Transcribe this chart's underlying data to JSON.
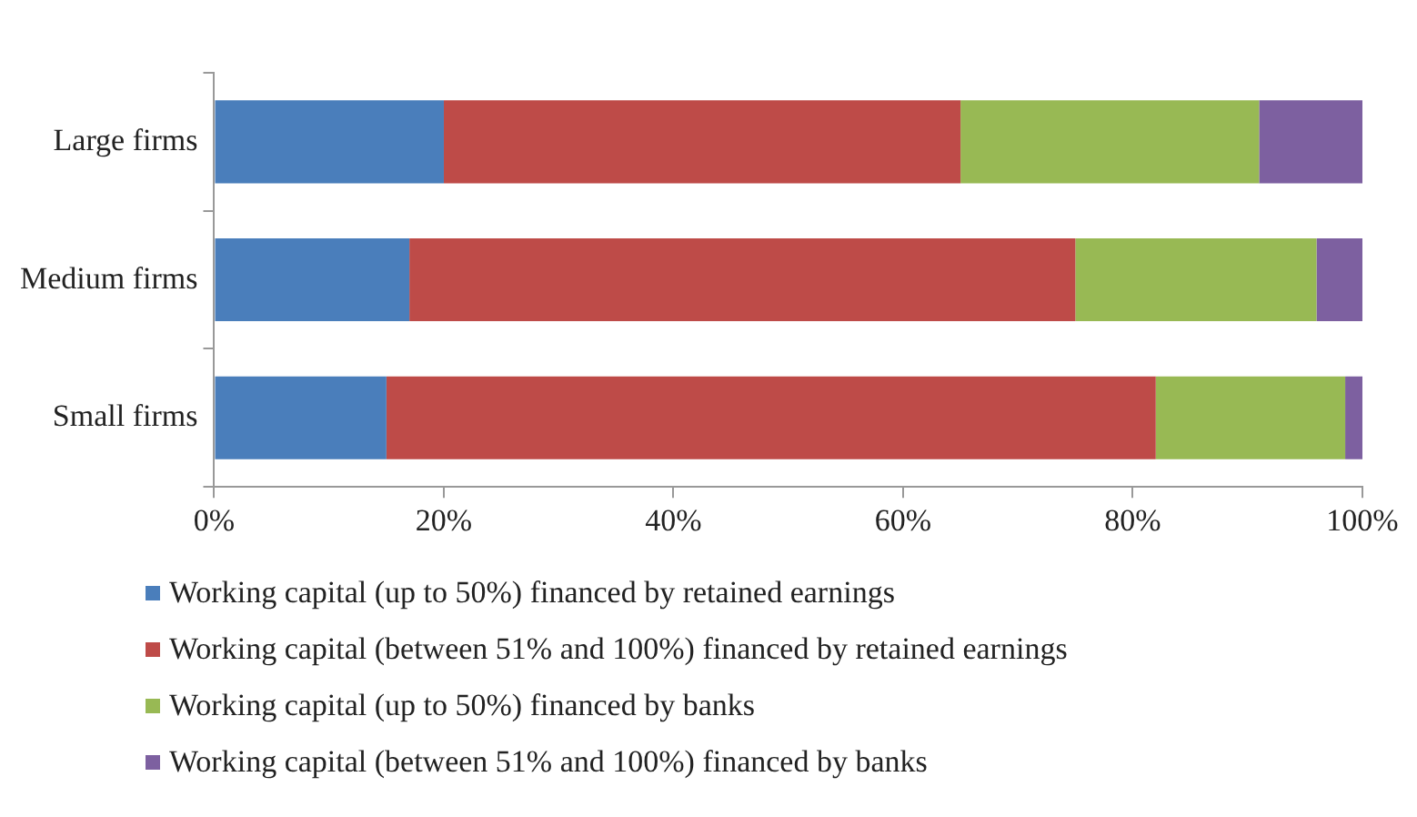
{
  "chart_data": {
    "type": "bar",
    "orientation": "horizontal",
    "stacked": true,
    "categories": [
      "Large firms",
      "Medium firms",
      "Small firms"
    ],
    "series": [
      {
        "name": "Working capital (up to 50%) financed by retained earnings",
        "color": "#4a7ebb",
        "values": [
          20,
          17,
          15
        ]
      },
      {
        "name": "Working capital (between 51% and 100%) financed by retained earnings",
        "color": "#be4b48",
        "values": [
          45,
          58,
          67
        ]
      },
      {
        "name": "Working capital (up to 50%) financed by banks",
        "color": "#98b954",
        "values": [
          26,
          21,
          16.5
        ]
      },
      {
        "name": "Working capital (between 51% and 100%) financed by banks",
        "color": "#7d60a0",
        "values": [
          9,
          4,
          1.5
        ]
      }
    ],
    "xlim": [
      0,
      100
    ],
    "xticks": [
      {
        "value": 0,
        "label": "0%"
      },
      {
        "value": 20,
        "label": "20%"
      },
      {
        "value": 40,
        "label": "40%"
      },
      {
        "value": 60,
        "label": "60%"
      },
      {
        "value": 80,
        "label": "80%"
      },
      {
        "value": 100,
        "label": "100%"
      }
    ],
    "grid": false,
    "legend": "bottom"
  }
}
